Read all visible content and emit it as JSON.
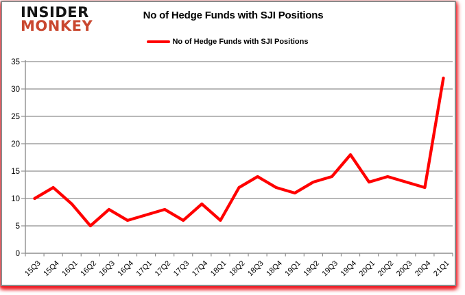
{
  "logo": {
    "line1": "INSIDER",
    "line2": "MONKEY",
    "line2_color": "#c9472f"
  },
  "header": {
    "title": "No of Hedge Funds with SJI Positions"
  },
  "legend": {
    "label": "No of Hedge Funds with SJI Positions",
    "swatch_color": "#ff0000"
  },
  "chart_data": {
    "type": "line",
    "title": "No of Hedge Funds with SJI Positions",
    "categories": [
      "15Q3",
      "15Q4",
      "16Q1",
      "16Q2",
      "16Q3",
      "16Q4",
      "17Q1",
      "17Q2",
      "17Q3",
      "17Q4",
      "18Q1",
      "18Q2",
      "18Q3",
      "18Q4",
      "19Q1",
      "19Q2",
      "19Q3",
      "19Q4",
      "20Q1",
      "20Q2",
      "20Q3",
      "20Q4",
      "21Q1"
    ],
    "series": [
      {
        "name": "No of Hedge Funds with SJI Positions",
        "values": [
          10,
          12,
          9,
          5,
          8,
          6,
          7,
          8,
          6,
          9,
          6,
          12,
          14,
          12,
          11,
          13,
          14,
          18,
          13,
          14,
          13,
          12,
          32
        ]
      }
    ],
    "xlabel": "",
    "ylabel": "",
    "ylim": [
      0,
      35
    ],
    "yticks": [
      0,
      5,
      10,
      15,
      20,
      25,
      30,
      35
    ],
    "grid": true,
    "legend_position": "top",
    "line_color": "#ff0000",
    "axis_color": "#8e8e8e",
    "label_color": "#000000"
  },
  "frame": {
    "border_color": "#8a8a8a",
    "glow_color": "#ed1c24"
  }
}
